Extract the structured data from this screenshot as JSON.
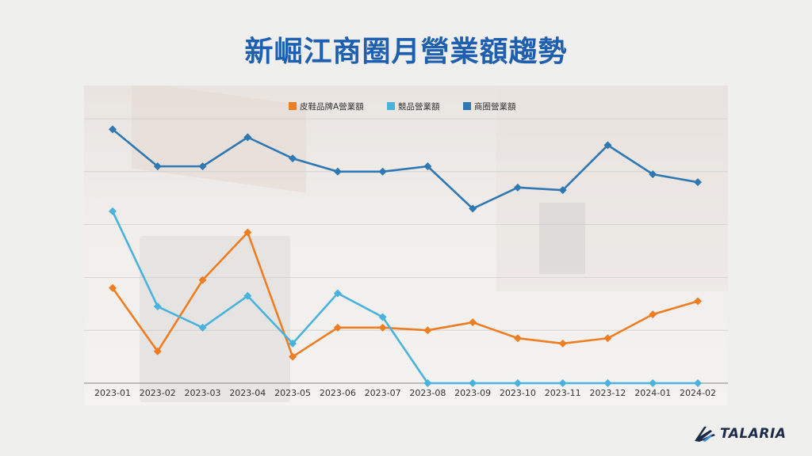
{
  "page": {
    "title": "新崛江商圈月營業額趨勢",
    "logo_text": "TALARIA"
  },
  "chart_data": {
    "type": "line",
    "categories": [
      "2023-01",
      "2023-02",
      "2023-03",
      "2023-04",
      "2023-05",
      "2023-06",
      "2023-07",
      "2023-08",
      "2023-09",
      "2023-10",
      "2023-11",
      "2023-12",
      "2024-01",
      "2024-02"
    ],
    "ylim": [
      0,
      100
    ],
    "grid": true,
    "legend": "top-center",
    "series": [
      {
        "name": "皮鞋品牌A營業額",
        "color": "#ef7d22",
        "values": [
          36,
          12,
          39,
          57,
          10,
          21,
          21,
          20,
          23,
          17,
          15,
          17,
          26,
          31
        ]
      },
      {
        "name": "競品營業額",
        "color": "#49b3de",
        "values": [
          65,
          29,
          21,
          33,
          15,
          34,
          25,
          0,
          0,
          0,
          0,
          0,
          0,
          0
        ]
      },
      {
        "name": "商圈營業額",
        "color": "#2e78b3",
        "values": [
          96,
          82,
          82,
          93,
          85,
          80,
          80,
          82,
          66,
          74,
          73,
          90,
          79,
          76
        ]
      }
    ]
  }
}
